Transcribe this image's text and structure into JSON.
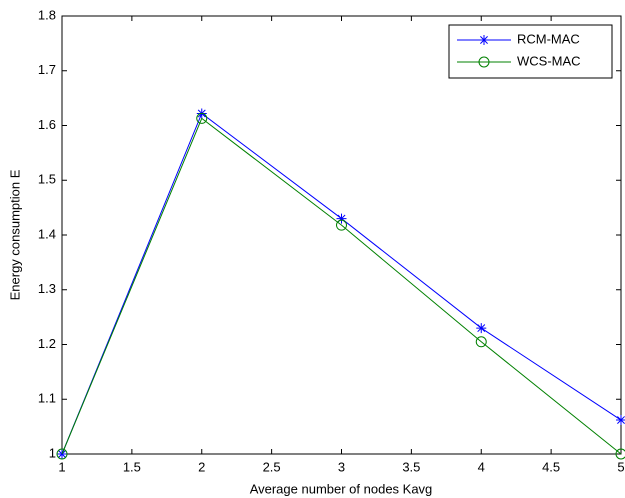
{
  "chart_data": {
    "type": "line",
    "x_label": "Average number of nodes Kavg",
    "y_label": "Energy consumption E",
    "x": [
      1,
      2,
      3,
      4,
      5
    ],
    "series": [
      {
        "name": "RCM-MAC",
        "color": "#0000ff",
        "marker": "star",
        "values": [
          1.0,
          1.622,
          1.43,
          1.23,
          1.062
        ]
      },
      {
        "name": "WCS-MAC",
        "color": "#008000",
        "marker": "circle",
        "values": [
          1.0,
          1.613,
          1.418,
          1.205,
          1.0
        ]
      }
    ],
    "xlim": [
      1,
      5
    ],
    "xticks": [
      1,
      1.5,
      2,
      2.5,
      3,
      3.5,
      4,
      4.5,
      5
    ],
    "ylim": [
      1,
      1.8
    ],
    "yticks": [
      1,
      1.1,
      1.2,
      1.3,
      1.4,
      1.5,
      1.6,
      1.7,
      1.8
    ],
    "grid": false,
    "legend": "upper-right"
  }
}
